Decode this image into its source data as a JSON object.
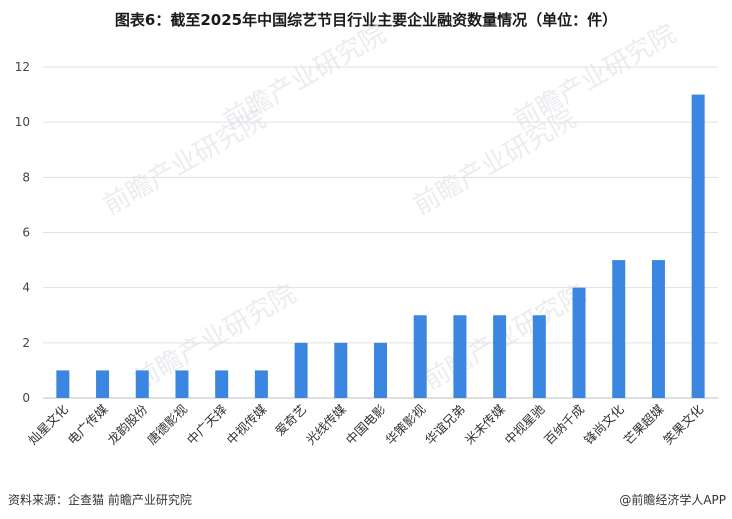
{
  "chart_data": {
    "type": "bar",
    "title": "图表6：截至2025年中国综艺节目行业主要企业融资数量情况（单位：件）",
    "xlabel": "",
    "ylabel": "",
    "ylim": [
      0,
      12
    ],
    "yticks": [
      0,
      2,
      4,
      6,
      8,
      10,
      12
    ],
    "grid": true,
    "bar_color": "#3b86e0",
    "categories": [
      "灿星文化",
      "电广传媒",
      "龙韵股份",
      "唐德影视",
      "中广天择",
      "中视传媒",
      "爱奇艺",
      "光线传媒",
      "中国电影",
      "华策影视",
      "华谊兄弟",
      "米未传媒",
      "中视星驰",
      "百纳千成",
      "锋尚文化",
      "芒果超媒",
      "笑果文化"
    ],
    "values": [
      1,
      1,
      1,
      1,
      1,
      1,
      2,
      2,
      2,
      3,
      3,
      3,
      3,
      4,
      5,
      5,
      11
    ]
  },
  "footer": {
    "source": "资料来源：企查猫  前瞻产业研究院",
    "brand": "@前瞻经济学人APP"
  },
  "watermark": {
    "text": "前瞻产业研究院"
  }
}
